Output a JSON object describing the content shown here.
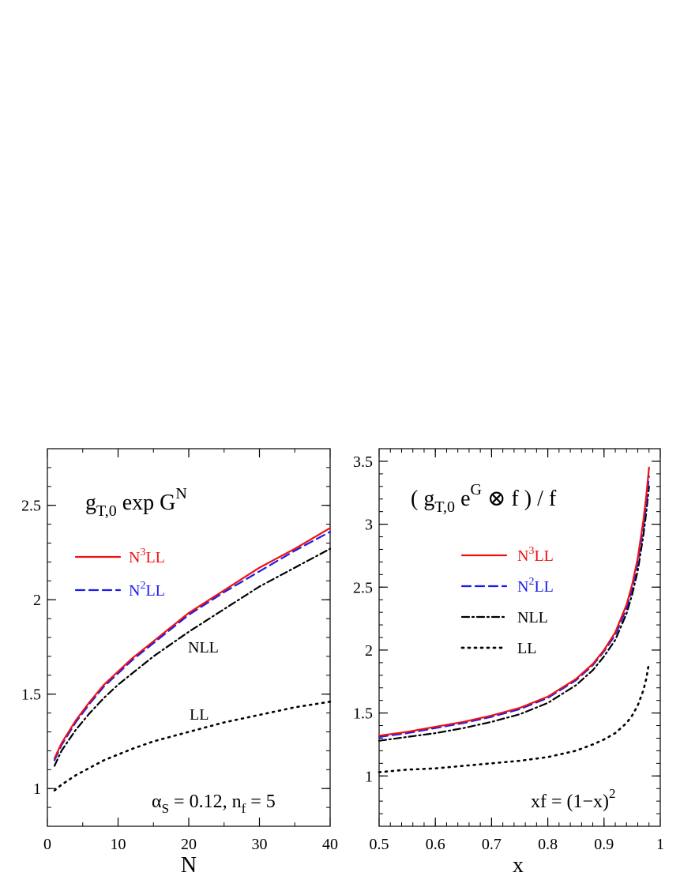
{
  "chart_data": [
    {
      "type": "line",
      "title_parts": {
        "main": "g",
        "sub": "T,0",
        "rest": " exp G",
        "sup": "N"
      },
      "xlabel": "N",
      "ylabel": "",
      "xlim": [
        0,
        40
      ],
      "ylim": [
        0.8,
        2.8
      ],
      "x_ticks": [
        "0",
        "10",
        "20",
        "30",
        "40"
      ],
      "y_ticks": [
        "1",
        "1.5",
        "2",
        "2.5"
      ],
      "legend": [
        {
          "prefix": "N",
          "sup": "3",
          "suffix": "LL",
          "color": "#ee1111",
          "dash": "solid"
        },
        {
          "prefix": "N",
          "sup": "2",
          "suffix": "LL",
          "color": "#1a1aee",
          "dash": "dashed"
        }
      ],
      "inline_labels": {
        "nll": "NLL",
        "ll": "LL"
      },
      "annotation_parts": {
        "alpha": "α",
        "alpha_sub": "S",
        "mid": " = 0.12,  n",
        "nf_sub": "f",
        "end": " = 5"
      },
      "series": [
        {
          "name": "N3LL",
          "color": "#ee1111",
          "dash": "solid",
          "x": [
            1,
            2,
            4,
            6,
            8,
            10,
            12,
            15,
            20,
            25,
            30,
            35,
            40
          ],
          "y": [
            1.16,
            1.24,
            1.36,
            1.46,
            1.55,
            1.62,
            1.69,
            1.78,
            1.93,
            2.05,
            2.17,
            2.27,
            2.38
          ]
        },
        {
          "name": "N2LL",
          "color": "#1a1aee",
          "dash": "dashed",
          "x": [
            1,
            2,
            4,
            6,
            8,
            10,
            12,
            15,
            20,
            25,
            30,
            35,
            40
          ],
          "y": [
            1.15,
            1.23,
            1.35,
            1.45,
            1.54,
            1.61,
            1.68,
            1.77,
            1.92,
            2.04,
            2.15,
            2.26,
            2.36
          ]
        },
        {
          "name": "NLL",
          "color": "#000000",
          "dash": "dashdot",
          "x": [
            1,
            2,
            4,
            6,
            8,
            10,
            12,
            15,
            20,
            25,
            30,
            35,
            40
          ],
          "y": [
            1.12,
            1.2,
            1.31,
            1.4,
            1.48,
            1.55,
            1.61,
            1.7,
            1.83,
            1.95,
            2.07,
            2.17,
            2.27
          ]
        },
        {
          "name": "LL",
          "color": "#000000",
          "dash": "dotted",
          "x": [
            1,
            2,
            4,
            6,
            8,
            10,
            12,
            15,
            20,
            25,
            30,
            35,
            40
          ],
          "y": [
            0.99,
            1.02,
            1.07,
            1.11,
            1.15,
            1.18,
            1.21,
            1.25,
            1.3,
            1.35,
            1.39,
            1.43,
            1.46
          ]
        }
      ]
    },
    {
      "type": "line",
      "title_parts": {
        "open": "( g",
        "sub": "T,0",
        "e": " e",
        "sup": "G",
        "rest": " ⊗ f ) / f"
      },
      "xlabel": "x",
      "ylabel": "",
      "xlim": [
        0.5,
        1.0
      ],
      "ylim": [
        0.6,
        3.6
      ],
      "x_ticks": [
        "0.5",
        "0.6",
        "0.7",
        "0.8",
        "0.9",
        "1"
      ],
      "y_ticks": [
        "1",
        "1.5",
        "2",
        "2.5",
        "3",
        "3.5"
      ],
      "legend": [
        {
          "prefix": "N",
          "sup": "3",
          "suffix": "LL",
          "color": "#ee1111",
          "dash": "solid"
        },
        {
          "prefix": "N",
          "sup": "2",
          "suffix": "LL",
          "color": "#1a1aee",
          "dash": "dashed"
        },
        {
          "prefix": "NLL",
          "sup": "",
          "suffix": "",
          "color": "#000000",
          "dash": "dashdot"
        },
        {
          "prefix": "LL",
          "sup": "",
          "suffix": "",
          "color": "#000000",
          "dash": "dotted"
        }
      ],
      "annotation_parts": {
        "main": "xf = (1−x)",
        "sup": "2"
      },
      "series": [
        {
          "name": "N3LL",
          "color": "#ee1111",
          "dash": "solid",
          "x": [
            0.5,
            0.55,
            0.6,
            0.65,
            0.7,
            0.75,
            0.8,
            0.85,
            0.88,
            0.9,
            0.92,
            0.94,
            0.95,
            0.96,
            0.97,
            0.975,
            0.98
          ],
          "y": [
            1.32,
            1.35,
            1.39,
            1.43,
            1.48,
            1.54,
            1.63,
            1.77,
            1.89,
            2.0,
            2.14,
            2.36,
            2.52,
            2.73,
            3.03,
            3.22,
            3.45
          ]
        },
        {
          "name": "N2LL",
          "color": "#1a1aee",
          "dash": "dashed",
          "x": [
            0.5,
            0.55,
            0.6,
            0.65,
            0.7,
            0.75,
            0.8,
            0.85,
            0.88,
            0.9,
            0.92,
            0.94,
            0.95,
            0.96,
            0.97,
            0.975,
            0.98
          ],
          "y": [
            1.31,
            1.34,
            1.38,
            1.42,
            1.47,
            1.53,
            1.62,
            1.76,
            1.88,
            1.99,
            2.12,
            2.33,
            2.49,
            2.69,
            2.98,
            3.16,
            3.38
          ]
        },
        {
          "name": "NLL",
          "color": "#000000",
          "dash": "dashdot",
          "x": [
            0.5,
            0.55,
            0.6,
            0.65,
            0.7,
            0.75,
            0.8,
            0.85,
            0.88,
            0.9,
            0.92,
            0.94,
            0.95,
            0.96,
            0.97,
            0.975,
            0.98
          ],
          "y": [
            1.28,
            1.31,
            1.34,
            1.38,
            1.43,
            1.49,
            1.58,
            1.72,
            1.84,
            1.95,
            2.08,
            2.29,
            2.44,
            2.63,
            2.91,
            3.09,
            3.3
          ]
        },
        {
          "name": "LL",
          "color": "#000000",
          "dash": "dotted",
          "x": [
            0.5,
            0.55,
            0.6,
            0.65,
            0.7,
            0.75,
            0.8,
            0.85,
            0.88,
            0.9,
            0.92,
            0.94,
            0.95,
            0.96,
            0.97,
            0.975,
            0.98
          ],
          "y": [
            1.03,
            1.05,
            1.06,
            1.08,
            1.1,
            1.12,
            1.15,
            1.2,
            1.25,
            1.29,
            1.34,
            1.42,
            1.48,
            1.56,
            1.68,
            1.77,
            1.9
          ]
        }
      ]
    }
  ]
}
